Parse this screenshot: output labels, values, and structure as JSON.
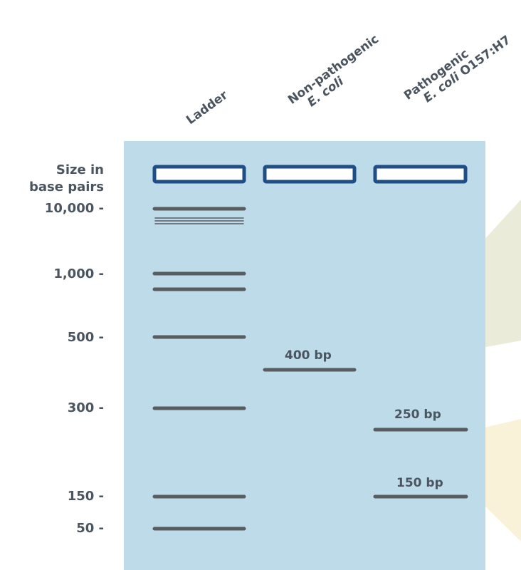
{
  "lanes": [
    {
      "name": "ladder",
      "line1": "Ladder",
      "line2": ""
    },
    {
      "name": "nonpath",
      "line1": "Non-pathogenic",
      "line2": "E. coli"
    },
    {
      "name": "path",
      "line1": "Pathogenic",
      "line2_italic": "E. coli",
      "line2_rest": " O157:H7"
    }
  ],
  "size_header": {
    "line1": "Size in",
    "line2": "base pairs"
  },
  "size_markers": [
    "10,000 -",
    "1,000 -",
    "500 -",
    "300 -",
    "150 -",
    "50 -"
  ],
  "sample_bands": [
    {
      "lane": "Non-pathogenic E. coli",
      "label": "400 bp"
    },
    {
      "lane": "Pathogenic E. coli O157:H7",
      "label": "250 bp"
    },
    {
      "lane": "Pathogenic E. coli O157:H7",
      "label": "150 bp"
    }
  ],
  "colors": {
    "gel": "#bedbea",
    "well_border": "#1f4e86",
    "well_fill": "#ffffff",
    "band": "#5a5d60",
    "text": "#4a5560",
    "callout_upper": "#ebebda",
    "callout_lower": "#f9f2d9"
  }
}
